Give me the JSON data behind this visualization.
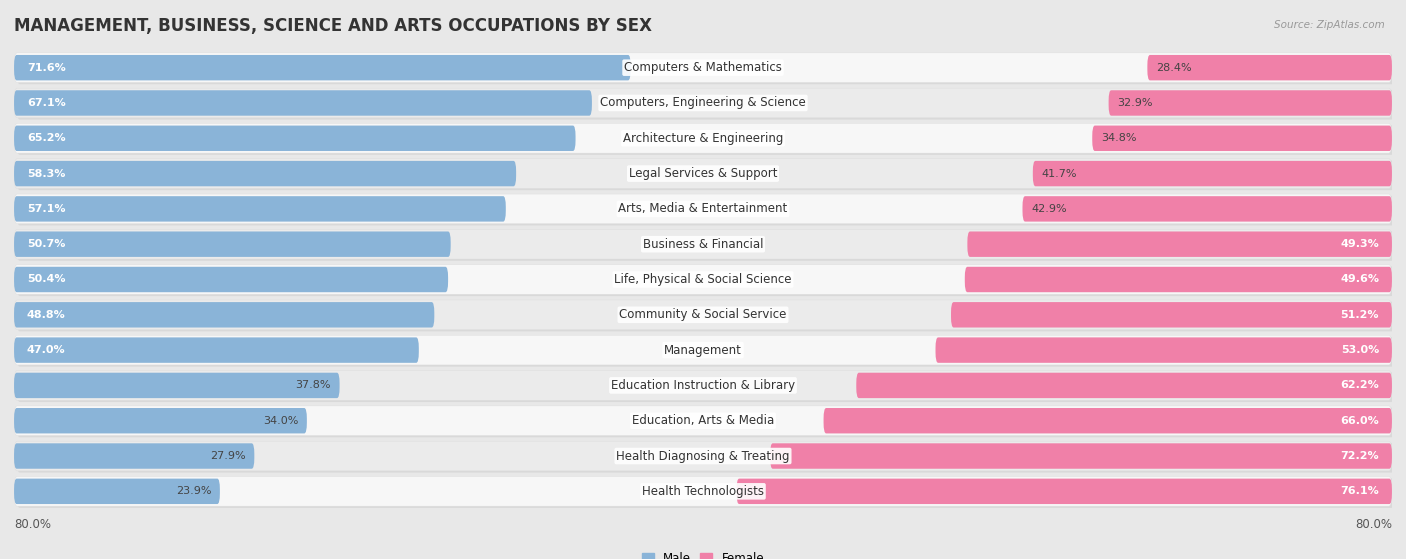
{
  "title": "MANAGEMENT, BUSINESS, SCIENCE AND ARTS OCCUPATIONS BY SEX",
  "source": "Source: ZipAtlas.com",
  "categories": [
    "Computers & Mathematics",
    "Computers, Engineering & Science",
    "Architecture & Engineering",
    "Legal Services & Support",
    "Arts, Media & Entertainment",
    "Business & Financial",
    "Life, Physical & Social Science",
    "Community & Social Service",
    "Management",
    "Education Instruction & Library",
    "Education, Arts & Media",
    "Health Diagnosing & Treating",
    "Health Technologists"
  ],
  "male": [
    71.6,
    67.1,
    65.2,
    58.3,
    57.1,
    50.7,
    50.4,
    48.8,
    47.0,
    37.8,
    34.0,
    27.9,
    23.9
  ],
  "female": [
    28.4,
    32.9,
    34.8,
    41.7,
    42.9,
    49.3,
    49.6,
    51.2,
    53.0,
    62.2,
    66.0,
    72.2,
    76.1
  ],
  "male_color": "#8ab4d8",
  "female_color": "#f080a8",
  "background_color": "#e8e8e8",
  "row_bg_light": "#f7f7f7",
  "row_bg_dark": "#ebebeb",
  "axis_limit": 80.0,
  "legend_male": "Male",
  "legend_female": "Female",
  "title_fontsize": 12,
  "label_fontsize": 8.5,
  "bar_label_fontsize": 8.0,
  "male_inside_threshold": 47.0,
  "female_inside_threshold": 49.3
}
